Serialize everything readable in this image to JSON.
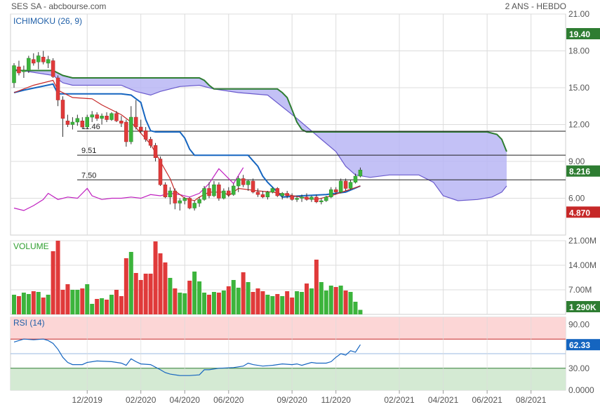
{
  "header": {
    "title": "SES SA - abcbourse.com",
    "period": "2 ANS - HEBDO"
  },
  "colors": {
    "grid": "#dcdcdc",
    "axis_text": "#555555",
    "panel_label": "#1f5fa8",
    "volume_label": "#2e9e2e",
    "up": "#3cb43c",
    "down": "#e03a3a",
    "cloud_fill": "#b9b6f5",
    "span_a": "#2e7d32",
    "span_b": "#6a5acd",
    "kijun": "#1565c0",
    "tenkan": "#c62828",
    "chikou": "#c020c0",
    "badge_green": "#2e7d32",
    "badge_red": "#c62828",
    "badge_blue": "#1565c0",
    "rsi_overbought": "#fcd6d6",
    "rsi_oversold": "#d4ead3",
    "rsi_line": "#1565c0"
  },
  "x_axis": {
    "ticks": [
      {
        "label": "12/2019",
        "week": 15
      },
      {
        "label": "02/2020",
        "week": 26
      },
      {
        "label": "04/2020",
        "week": 35
      },
      {
        "label": "06/2020",
        "week": 44
      },
      {
        "label": "09/2020",
        "week": 57
      },
      {
        "label": "11/2020",
        "week": 66
      },
      {
        "label": "02/2021",
        "week": 79
      },
      {
        "label": "04/2021",
        "week": 88
      },
      {
        "label": "06/2021",
        "week": 97
      },
      {
        "label": "08/2021",
        "week": 106
      }
    ]
  },
  "chart_data": [
    {
      "type": "candlestick",
      "title": "ICHIMOKU (26, 9)",
      "ylim": [
        3.0,
        21.0
      ],
      "y_ticks": [
        "21.00",
        "18.00",
        "15.00",
        "12.00",
        "9.00",
        "6.00"
      ],
      "y_tick_values": [
        21,
        18,
        15,
        12,
        9,
        6
      ],
      "candles": [
        [
          15.4,
          17.0,
          15.0,
          16.8
        ],
        [
          16.7,
          17.2,
          16.0,
          16.2
        ],
        [
          16.3,
          16.8,
          15.8,
          16.4
        ],
        [
          16.4,
          17.6,
          16.2,
          17.4
        ],
        [
          17.3,
          17.8,
          16.8,
          17.0
        ],
        [
          17.1,
          17.9,
          16.5,
          17.6
        ],
        [
          17.5,
          18.0,
          16.9,
          17.1
        ],
        [
          17.0,
          17.6,
          16.6,
          17.3
        ],
        [
          17.2,
          17.4,
          15.8,
          15.9
        ],
        [
          15.8,
          16.0,
          13.5,
          14.0
        ],
        [
          14.0,
          14.3,
          11.0,
          12.5
        ],
        [
          12.3,
          12.8,
          11.8,
          12.0
        ],
        [
          12.0,
          12.6,
          11.6,
          12.2
        ],
        [
          12.2,
          12.8,
          11.9,
          12.5
        ],
        [
          12.3,
          12.6,
          11.7,
          11.8
        ],
        [
          11.8,
          12.8,
          11.7,
          12.6
        ],
        [
          12.6,
          13.1,
          12.2,
          12.8
        ],
        [
          12.8,
          13.0,
          12.3,
          12.5
        ],
        [
          12.5,
          12.9,
          12.0,
          12.7
        ],
        [
          12.7,
          13.0,
          12.2,
          12.4
        ],
        [
          12.4,
          13.0,
          12.3,
          12.9
        ],
        [
          12.9,
          13.1,
          12.2,
          12.3
        ],
        [
          12.3,
          12.7,
          11.8,
          12.1
        ],
        [
          12.2,
          12.4,
          10.2,
          10.6
        ],
        [
          10.6,
          13.5,
          10.4,
          12.6
        ],
        [
          12.6,
          14.0,
          11.6,
          11.8
        ],
        [
          11.8,
          12.4,
          11.3,
          11.5
        ],
        [
          11.5,
          11.8,
          10.6,
          10.8
        ],
        [
          10.8,
          11.0,
          10.1,
          10.3
        ],
        [
          10.3,
          10.5,
          9.0,
          9.3
        ],
        [
          9.2,
          9.4,
          7.0,
          7.1
        ],
        [
          7.1,
          7.3,
          6.0,
          6.1
        ],
        [
          6.1,
          6.9,
          5.5,
          6.6
        ],
        [
          6.6,
          6.8,
          5.1,
          5.6
        ],
        [
          5.6,
          6.0,
          5.0,
          5.8
        ],
        [
          5.8,
          6.1,
          5.5,
          6.0
        ],
        [
          6.0,
          6.1,
          5.1,
          5.2
        ],
        [
          5.2,
          5.8,
          5.0,
          5.6
        ],
        [
          5.6,
          6.1,
          5.3,
          5.9
        ],
        [
          5.9,
          7.0,
          5.8,
          6.8
        ],
        [
          6.8,
          7.3,
          6.0,
          6.2
        ],
        [
          6.2,
          7.4,
          6.1,
          7.1
        ],
        [
          7.1,
          7.3,
          5.8,
          6.0
        ],
        [
          6.0,
          6.8,
          5.9,
          6.6
        ],
        [
          6.6,
          6.9,
          6.1,
          6.3
        ],
        [
          6.3,
          7.2,
          6.2,
          7.0
        ],
        [
          7.0,
          7.8,
          6.5,
          7.6
        ],
        [
          7.6,
          7.9,
          6.9,
          7.1
        ],
        [
          7.1,
          7.5,
          6.6,
          7.4
        ],
        [
          7.4,
          7.6,
          6.4,
          6.5
        ],
        [
          6.5,
          6.8,
          6.1,
          6.3
        ],
        [
          6.3,
          6.6,
          6.0,
          6.1
        ],
        [
          6.1,
          6.6,
          5.9,
          6.5
        ],
        [
          6.5,
          6.9,
          6.4,
          6.8
        ],
        [
          6.8,
          6.9,
          6.1,
          6.2
        ],
        [
          6.2,
          6.5,
          5.9,
          6.4
        ],
        [
          6.4,
          6.6,
          6.0,
          6.2
        ],
        [
          6.2,
          6.4,
          5.8,
          5.9
        ],
        [
          5.9,
          6.2,
          5.7,
          6.0
        ],
        [
          6.0,
          6.3,
          5.7,
          6.1
        ],
        [
          6.1,
          6.4,
          5.8,
          5.9
        ],
        [
          5.9,
          6.2,
          5.7,
          6.1
        ],
        [
          6.1,
          6.3,
          5.6,
          5.7
        ],
        [
          5.7,
          6.0,
          5.5,
          5.8
        ],
        [
          5.8,
          6.2,
          5.7,
          6.1
        ],
        [
          6.1,
          6.9,
          6.0,
          6.7
        ],
        [
          6.7,
          6.9,
          6.3,
          6.5
        ],
        [
          6.5,
          7.6,
          6.4,
          7.4
        ],
        [
          7.4,
          7.6,
          6.6,
          6.8
        ],
        [
          6.8,
          7.5,
          6.7,
          7.3
        ],
        [
          7.3,
          8.0,
          7.2,
          7.8
        ],
        [
          7.8,
          8.5,
          7.7,
          8.3
        ]
      ],
      "tenkan": [
        [
          0,
          14.6
        ],
        [
          4,
          15.2
        ],
        [
          8,
          15.6
        ],
        [
          9,
          14.8
        ],
        [
          12,
          14.2
        ],
        [
          16,
          14.1
        ],
        [
          18,
          13.6
        ],
        [
          22,
          12.8
        ],
        [
          24,
          12.2
        ],
        [
          26,
          11.3
        ],
        [
          28,
          10.4
        ],
        [
          30,
          9.0
        ],
        [
          32,
          7.6
        ],
        [
          33,
          6.6
        ],
        [
          35,
          6.0
        ],
        [
          37,
          5.8
        ],
        [
          38,
          6.1
        ],
        [
          40,
          6.5
        ],
        [
          43,
          6.5
        ],
        [
          44,
          6.2
        ],
        [
          46,
          6.8
        ],
        [
          50,
          6.6
        ],
        [
          53,
          6.5
        ],
        [
          56,
          6.3
        ],
        [
          60,
          6.0
        ],
        [
          62,
          5.9
        ],
        [
          65,
          6.2
        ],
        [
          68,
          6.6
        ],
        [
          71,
          7.0
        ]
      ],
      "kijun": [
        [
          0,
          14.6
        ],
        [
          2,
          14.8
        ],
        [
          8,
          15.3
        ],
        [
          9,
          14.5
        ],
        [
          22,
          14.5
        ],
        [
          24,
          14.4
        ],
        [
          26,
          13.8
        ],
        [
          27,
          12.4
        ],
        [
          28,
          11.5
        ],
        [
          29,
          11.4
        ],
        [
          34,
          11.4
        ],
        [
          35,
          10.9
        ],
        [
          36,
          10.0
        ],
        [
          37,
          9.5
        ],
        [
          48,
          9.5
        ],
        [
          50,
          8.6
        ],
        [
          51,
          7.8
        ],
        [
          52,
          7.3
        ],
        [
          53,
          6.9
        ],
        [
          54,
          6.5
        ],
        [
          55,
          6.1
        ],
        [
          59,
          6.2
        ],
        [
          64,
          6.3
        ],
        [
          68,
          6.5
        ],
        [
          71,
          7.0
        ]
      ],
      "span_a": [
        [
          0,
          16.4
        ],
        [
          8,
          16.4
        ],
        [
          10,
          16.0
        ],
        [
          12,
          15.8
        ],
        [
          38,
          15.8
        ],
        [
          39,
          15.6
        ],
        [
          40,
          15.2
        ],
        [
          41,
          14.9
        ],
        [
          54,
          14.9
        ],
        [
          55,
          14.6
        ],
        [
          56,
          14.2
        ],
        [
          57,
          13.2
        ],
        [
          58,
          12.2
        ],
        [
          59,
          11.6
        ],
        [
          60,
          11.4
        ],
        [
          97,
          11.4
        ],
        [
          99,
          11.2
        ],
        [
          100,
          10.8
        ],
        [
          101,
          9.8
        ]
      ],
      "span_b": [
        [
          0,
          16.5
        ],
        [
          8,
          16.0
        ],
        [
          10,
          15.4
        ],
        [
          12,
          15.2
        ],
        [
          22,
          15.2
        ],
        [
          25,
          14.7
        ],
        [
          28,
          14.4
        ],
        [
          30,
          14.7
        ],
        [
          34,
          15.1
        ],
        [
          38,
          15.2
        ],
        [
          41,
          14.9
        ],
        [
          46,
          14.6
        ],
        [
          52,
          14.4
        ],
        [
          58,
          12.5
        ],
        [
          63,
          10.8
        ],
        [
          66,
          9.8
        ],
        [
          68,
          8.6
        ],
        [
          70,
          7.9
        ],
        [
          73,
          7.7
        ],
        [
          77,
          7.9
        ],
        [
          83,
          7.9
        ],
        [
          86,
          7.3
        ],
        [
          88,
          6.2
        ],
        [
          91,
          5.8
        ],
        [
          95,
          5.9
        ],
        [
          98,
          6.1
        ],
        [
          100,
          6.5
        ],
        [
          101,
          7.0
        ]
      ],
      "chikou": [
        [
          0,
          5.2
        ],
        [
          2,
          5.0
        ],
        [
          4,
          5.4
        ],
        [
          6,
          5.9
        ],
        [
          7,
          6.4
        ],
        [
          9,
          5.9
        ],
        [
          11,
          6.1
        ],
        [
          13,
          6.0
        ],
        [
          15,
          6.8
        ],
        [
          16,
          6.2
        ],
        [
          18,
          5.9
        ],
        [
          20,
          6.0
        ],
        [
          22,
          6.0
        ],
        [
          24,
          6.1
        ],
        [
          26,
          6.0
        ],
        [
          28,
          6.3
        ],
        [
          30,
          6.2
        ],
        [
          32,
          6.4
        ],
        [
          34,
          6.3
        ],
        [
          36,
          6.1
        ],
        [
          38,
          6.4
        ],
        [
          40,
          7.2
        ],
        [
          42,
          8.4
        ],
        [
          45,
          7.2
        ],
        [
          47,
          8.5
        ]
      ],
      "levels": [
        {
          "label": "11.46",
          "value": 11.46
        },
        {
          "label": "9.51",
          "value": 9.51
        },
        {
          "label": "7.50",
          "value": 7.5
        }
      ],
      "badges": [
        {
          "label": "19.40",
          "value": 19.4,
          "color": "#2e7d32"
        },
        {
          "label": "8.216",
          "value": 8.216,
          "color": "#2e7d32"
        },
        {
          "label": "4.870",
          "value": 4.87,
          "color": "#c62828"
        }
      ]
    },
    {
      "type": "bar",
      "title": "VOLUME",
      "ylim": [
        0,
        21000
      ],
      "y_ticks": [
        "21.00M",
        "14.00M",
        "7.00M"
      ],
      "y_tick_values": [
        21000,
        14000,
        7000
      ],
      "values": [
        5600,
        5200,
        6200,
        5800,
        6600,
        6400,
        4800,
        5600,
        18000,
        21000,
        7000,
        8600,
        7000,
        7000,
        7400,
        8600,
        3000,
        4400,
        4600,
        4200,
        5600,
        7000,
        5200,
        16000,
        17800,
        11800,
        9800,
        11600,
        11600,
        20800,
        17400,
        14800,
        10400,
        7400,
        6200,
        6000,
        9600,
        12200,
        9400,
        6200,
        5600,
        6400,
        6200,
        6800,
        8000,
        9800,
        7600,
        12000,
        9200,
        6400,
        7400,
        6600,
        5600,
        5200,
        5800,
        5200,
        6600,
        4800,
        6600,
        6400,
        8800,
        7400,
        15600,
        9200,
        6800,
        8200,
        7800,
        8200,
        6800,
        6400,
        3600,
        1290
      ],
      "up": [
        true,
        false,
        true,
        true,
        false,
        true,
        false,
        true,
        false,
        false,
        false,
        false,
        true,
        true,
        false,
        true,
        true,
        false,
        true,
        false,
        true,
        false,
        false,
        false,
        true,
        false,
        false,
        false,
        false,
        false,
        false,
        false,
        true,
        false,
        true,
        true,
        false,
        true,
        true,
        true,
        false,
        true,
        false,
        true,
        false,
        true,
        true,
        false,
        true,
        false,
        false,
        false,
        true,
        true,
        false,
        true,
        false,
        false,
        true,
        true,
        false,
        true,
        false,
        true,
        true,
        true,
        false,
        true,
        false,
        true,
        true,
        true
      ],
      "badge": {
        "label": "1 290K",
        "color": "#2e7d32"
      }
    },
    {
      "type": "line",
      "title": "RSI (14)",
      "ylim": [
        0,
        100
      ],
      "y_ticks": [
        "90.00",
        "30.00",
        "0.0000"
      ],
      "y_tick_values": [
        90,
        30,
        0
      ],
      "values": [
        [
          0,
          66
        ],
        [
          2,
          70
        ],
        [
          4,
          69
        ],
        [
          6,
          70
        ],
        [
          7,
          68
        ],
        [
          8,
          64
        ],
        [
          9,
          56
        ],
        [
          10,
          45
        ],
        [
          11,
          38
        ],
        [
          12,
          35
        ],
        [
          14,
          35
        ],
        [
          15,
          38
        ],
        [
          17,
          40
        ],
        [
          20,
          39
        ],
        [
          22,
          37
        ],
        [
          23,
          34
        ],
        [
          24,
          43
        ],
        [
          25,
          39
        ],
        [
          26,
          36
        ],
        [
          28,
          35
        ],
        [
          30,
          28
        ],
        [
          31,
          24
        ],
        [
          32,
          22
        ],
        [
          34,
          20
        ],
        [
          36,
          20
        ],
        [
          38,
          21
        ],
        [
          39,
          28
        ],
        [
          40,
          28
        ],
        [
          42,
          30
        ],
        [
          45,
          31
        ],
        [
          47,
          33
        ],
        [
          48,
          37
        ],
        [
          49,
          35
        ],
        [
          51,
          33
        ],
        [
          53,
          34
        ],
        [
          55,
          36
        ],
        [
          57,
          35
        ],
        [
          58,
          36
        ],
        [
          59,
          34
        ],
        [
          61,
          38
        ],
        [
          62,
          37
        ],
        [
          64,
          37
        ],
        [
          65,
          39
        ],
        [
          66,
          45
        ],
        [
          67,
          50
        ],
        [
          68,
          48
        ],
        [
          69,
          54
        ],
        [
          70,
          52
        ],
        [
          71,
          62.33
        ]
      ],
      "overbought": 70,
      "oversold": 30,
      "badge": {
        "label": "62.33",
        "color": "#1565c0"
      }
    }
  ]
}
